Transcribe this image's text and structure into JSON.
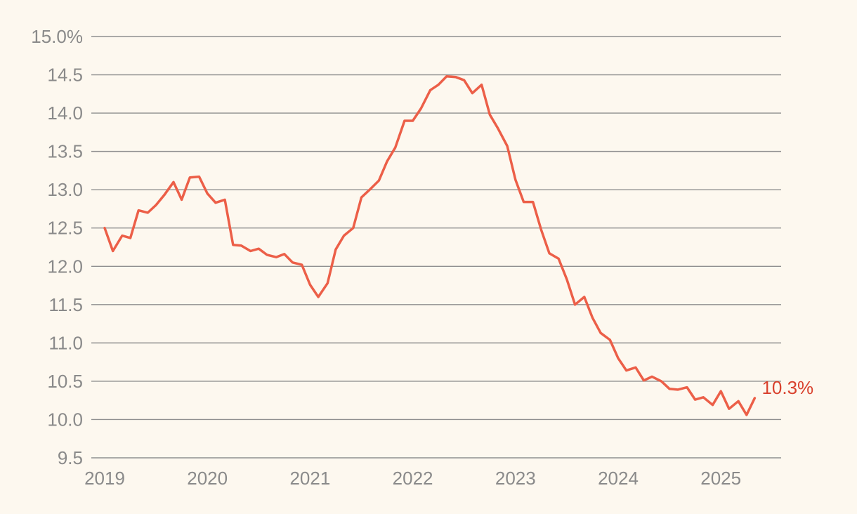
{
  "chart_data": {
    "type": "line",
    "title": "",
    "xlabel": "",
    "ylabel": "",
    "ylim": [
      9.5,
      15.0
    ],
    "xlim": [
      2019.0,
      2025.5
    ],
    "grid": true,
    "y_ticks": [
      {
        "value": 15.0,
        "label": "15.0%"
      },
      {
        "value": 14.5,
        "label": "14.5"
      },
      {
        "value": 14.0,
        "label": "14.0"
      },
      {
        "value": 13.5,
        "label": "13.5"
      },
      {
        "value": 13.0,
        "label": "13.0"
      },
      {
        "value": 12.5,
        "label": "12.5"
      },
      {
        "value": 12.0,
        "label": "12.0"
      },
      {
        "value": 11.5,
        "label": "11.5"
      },
      {
        "value": 11.0,
        "label": "11.0"
      },
      {
        "value": 10.5,
        "label": "10.5"
      },
      {
        "value": 10.0,
        "label": "10.0"
      },
      {
        "value": 9.5,
        "label": "9.5"
      }
    ],
    "x_ticks": [
      {
        "value": 2019.0,
        "label": "2019"
      },
      {
        "value": 2020.0,
        "label": "2020"
      },
      {
        "value": 2021.0,
        "label": "2021"
      },
      {
        "value": 2022.0,
        "label": "2022"
      },
      {
        "value": 2023.0,
        "label": "2023"
      },
      {
        "value": 2024.0,
        "label": "2024"
      },
      {
        "value": 2025.0,
        "label": "2025"
      }
    ],
    "series": [
      {
        "color": "#ec5f48",
        "end_label": "10.3%",
        "end_label_color": "#d9422e",
        "points": [
          [
            2019.0,
            12.5
          ],
          [
            2019.08,
            12.2
          ],
          [
            2019.17,
            12.4
          ],
          [
            2019.25,
            12.37
          ],
          [
            2019.33,
            12.73
          ],
          [
            2019.42,
            12.7
          ],
          [
            2019.5,
            12.8
          ],
          [
            2019.58,
            12.93
          ],
          [
            2019.67,
            13.1
          ],
          [
            2019.75,
            12.87
          ],
          [
            2019.83,
            13.16
          ],
          [
            2019.92,
            13.17
          ],
          [
            2020.0,
            12.95
          ],
          [
            2020.08,
            12.83
          ],
          [
            2020.17,
            12.87
          ],
          [
            2020.25,
            12.28
          ],
          [
            2020.33,
            12.27
          ],
          [
            2020.42,
            12.2
          ],
          [
            2020.5,
            12.23
          ],
          [
            2020.58,
            12.15
          ],
          [
            2020.67,
            12.12
          ],
          [
            2020.75,
            12.16
          ],
          [
            2020.83,
            12.05
          ],
          [
            2020.92,
            12.02
          ],
          [
            2021.0,
            11.76
          ],
          [
            2021.08,
            11.6
          ],
          [
            2021.17,
            11.78
          ],
          [
            2021.25,
            12.22
          ],
          [
            2021.33,
            12.4
          ],
          [
            2021.42,
            12.5
          ],
          [
            2021.5,
            12.9
          ],
          [
            2021.58,
            13.0
          ],
          [
            2021.67,
            13.12
          ],
          [
            2021.75,
            13.37
          ],
          [
            2021.83,
            13.55
          ],
          [
            2021.92,
            13.9
          ],
          [
            2022.0,
            13.9
          ],
          [
            2022.08,
            14.06
          ],
          [
            2022.17,
            14.3
          ],
          [
            2022.25,
            14.37
          ],
          [
            2022.33,
            14.48
          ],
          [
            2022.42,
            14.47
          ],
          [
            2022.5,
            14.43
          ],
          [
            2022.58,
            14.26
          ],
          [
            2022.67,
            14.37
          ],
          [
            2022.75,
            13.98
          ],
          [
            2022.83,
            13.8
          ],
          [
            2022.92,
            13.57
          ],
          [
            2023.0,
            13.13
          ],
          [
            2023.08,
            12.84
          ],
          [
            2023.17,
            12.84
          ],
          [
            2023.25,
            12.48
          ],
          [
            2023.33,
            12.17
          ],
          [
            2023.42,
            12.1
          ],
          [
            2023.5,
            11.83
          ],
          [
            2023.58,
            11.5
          ],
          [
            2023.67,
            11.6
          ],
          [
            2023.75,
            11.33
          ],
          [
            2023.83,
            11.13
          ],
          [
            2023.92,
            11.04
          ],
          [
            2024.0,
            10.8
          ],
          [
            2024.08,
            10.64
          ],
          [
            2024.17,
            10.68
          ],
          [
            2024.25,
            10.51
          ],
          [
            2024.33,
            10.56
          ],
          [
            2024.42,
            10.5
          ],
          [
            2024.5,
            10.4
          ],
          [
            2024.58,
            10.39
          ],
          [
            2024.67,
            10.42
          ],
          [
            2024.75,
            10.26
          ],
          [
            2024.83,
            10.29
          ],
          [
            2024.92,
            10.19
          ],
          [
            2025.0,
            10.37
          ],
          [
            2025.08,
            10.14
          ],
          [
            2025.17,
            10.24
          ],
          [
            2025.25,
            10.06
          ],
          [
            2025.33,
            10.28
          ]
        ]
      }
    ]
  },
  "style": {
    "background": "#fdf8ef",
    "grid_color": "#8f8f8f",
    "tick_color": "#8a8a8a"
  }
}
